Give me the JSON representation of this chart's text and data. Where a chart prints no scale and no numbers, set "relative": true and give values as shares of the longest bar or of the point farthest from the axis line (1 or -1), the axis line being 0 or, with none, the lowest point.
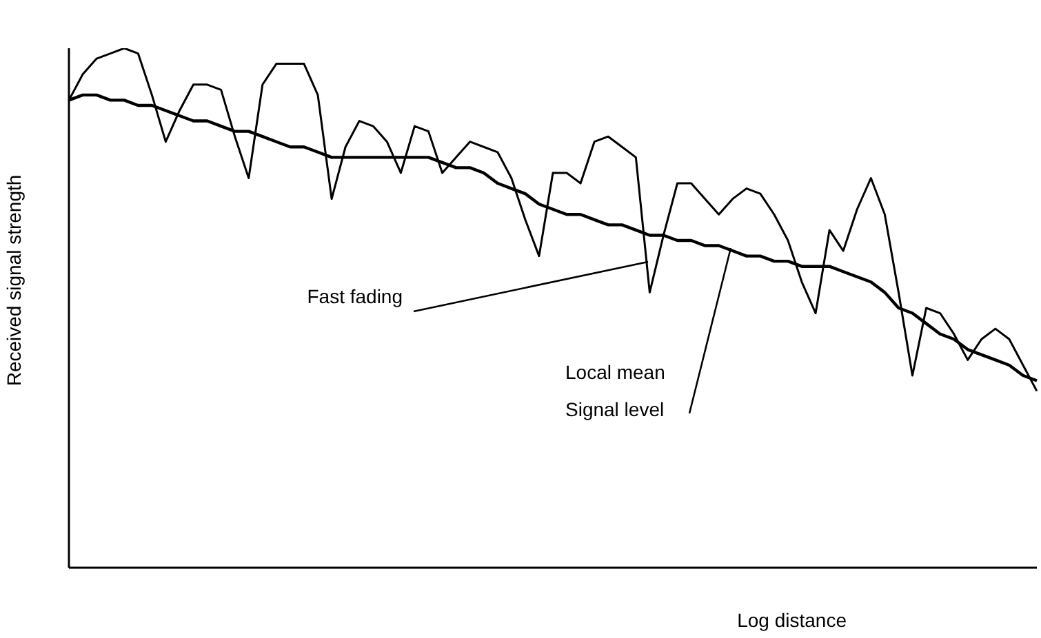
{
  "chart_data": {
    "type": "line",
    "relative": true,
    "xlabel": "Log distance",
    "ylabel": "Received signal strength",
    "marker": "none",
    "line_style": "solid",
    "legend": false,
    "grid": false,
    "categories": [
      null,
      null,
      null,
      null,
      null,
      null,
      null,
      null,
      null,
      null,
      null,
      null,
      null,
      null,
      null,
      null,
      null,
      null,
      null,
      null,
      null,
      null,
      null,
      null,
      null,
      null,
      null,
      null,
      null,
      null,
      null,
      null,
      null,
      null,
      null,
      null,
      null,
      null,
      null,
      null,
      null,
      null,
      null,
      null,
      null,
      null,
      null,
      null,
      null,
      null,
      null,
      null,
      null,
      null,
      null,
      null,
      null,
      null,
      null,
      null,
      null,
      null,
      null,
      null,
      null,
      null,
      null,
      null,
      null,
      null,
      null
    ],
    "series": [
      {
        "color": "#000000",
        "values": [
          0.9,
          0.95,
          0.98,
          0.99,
          1.0,
          0.99,
          0.91,
          0.82,
          0.88,
          0.93,
          0.93,
          0.92,
          0.83,
          0.75,
          0.93,
          0.97,
          0.97,
          0.97,
          0.91,
          0.71,
          0.81,
          0.86,
          0.85,
          0.82,
          0.76,
          0.85,
          0.84,
          0.76,
          0.79,
          0.82,
          0.81,
          0.8,
          0.75,
          0.67,
          0.6,
          0.76,
          0.76,
          0.74,
          0.82,
          0.83,
          0.81,
          0.79,
          0.53,
          0.64,
          0.74,
          0.74,
          0.71,
          0.68,
          0.71,
          0.73,
          0.72,
          0.68,
          0.63,
          0.55,
          0.49,
          0.65,
          0.61,
          0.69,
          0.75,
          0.68,
          0.53,
          0.37,
          0.5,
          0.49,
          0.45,
          0.4,
          0.44,
          0.46,
          0.44,
          0.39,
          0.34
        ]
      },
      {
        "color": "#000000",
        "values": [
          0.9,
          0.91,
          0.91,
          0.9,
          0.9,
          0.89,
          0.89,
          0.88,
          0.87,
          0.86,
          0.86,
          0.85,
          0.84,
          0.84,
          0.83,
          0.82,
          0.81,
          0.81,
          0.8,
          0.79,
          0.79,
          0.79,
          0.79,
          0.79,
          0.79,
          0.79,
          0.79,
          0.78,
          0.77,
          0.77,
          0.76,
          0.74,
          0.73,
          0.72,
          0.7,
          0.69,
          0.68,
          0.68,
          0.67,
          0.66,
          0.66,
          0.65,
          0.64,
          0.64,
          0.63,
          0.63,
          0.62,
          0.62,
          0.61,
          0.6,
          0.6,
          0.59,
          0.59,
          0.58,
          0.58,
          0.58,
          0.57,
          0.56,
          0.55,
          0.53,
          0.5,
          0.49,
          0.47,
          0.45,
          0.44,
          0.42,
          0.41,
          0.4,
          0.39,
          0.37,
          0.36
        ]
      }
    ],
    "annotations": [
      "Fast fading",
      "Local mean\nSignal level"
    ]
  }
}
